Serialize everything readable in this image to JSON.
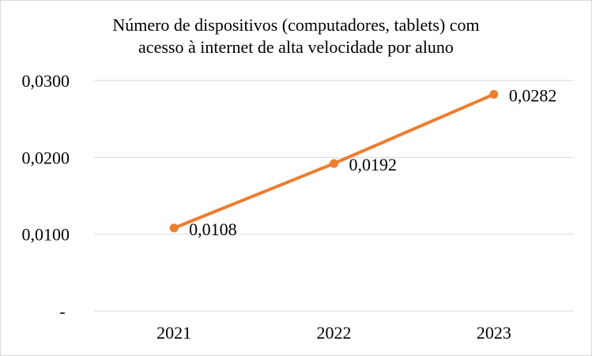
{
  "chart_data": {
    "type": "line",
    "title_line1": "Número de dispositivos (computadores, tablets) com",
    "title_line2": "acesso à internet de alta velocidade por aluno",
    "categories": [
      "2021",
      "2022",
      "2023"
    ],
    "series": [
      {
        "values": [
          0.0108,
          0.0192,
          0.0282
        ],
        "labels": [
          "0,0108",
          "0,0192",
          "0,0282"
        ],
        "color": "#ED7D31"
      }
    ],
    "ylim": [
      0,
      0.03
    ],
    "yticks": [
      {
        "value": 0,
        "label": "-"
      },
      {
        "value": 0.01,
        "label": "0,0100"
      },
      {
        "value": 0.02,
        "label": "0,0200"
      },
      {
        "value": 0.03,
        "label": "0,0300"
      }
    ],
    "grid": true,
    "legend": "none",
    "gridline_color": "#d9d9d9"
  }
}
